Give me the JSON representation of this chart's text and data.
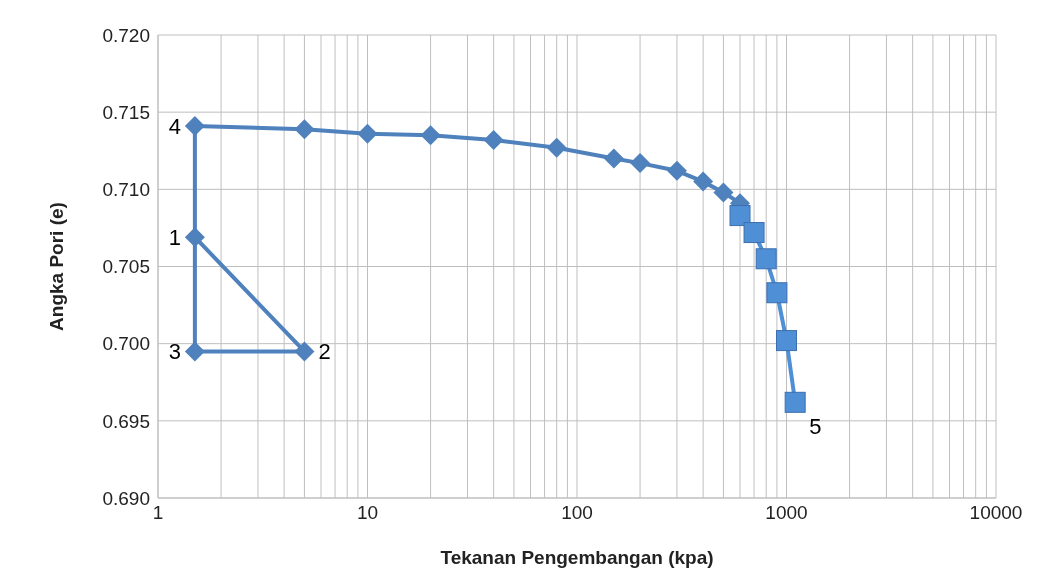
{
  "chart_data": {
    "type": "line",
    "xlabel": "Tekanan Pengembangan (kpa)",
    "ylabel": "Angka Pori (e)",
    "log": "x",
    "grid": true,
    "legend": false,
    "line_style": "solid",
    "xlim": [
      1,
      10000
    ],
    "xticks": [
      1,
      10,
      100,
      1000,
      10000
    ],
    "ylim": [
      0.69,
      0.72
    ],
    "yticks": [
      {
        "value": 0.69,
        "label": "0.690"
      },
      {
        "value": 0.695,
        "label": "0.695"
      },
      {
        "value": 0.7,
        "label": "0.700"
      },
      {
        "value": 0.705,
        "label": "0.705"
      },
      {
        "value": 0.71,
        "label": "0.710"
      },
      {
        "value": 0.715,
        "label": "0.715"
      },
      {
        "value": 0.72,
        "label": "0.720"
      }
    ],
    "series": [
      {
        "color": "#4f81bd",
        "marker": "diamond",
        "x": [
          1.5,
          5,
          1.5,
          1.5,
          5,
          10,
          20,
          40,
          80,
          150,
          200,
          300,
          400,
          500,
          600
        ],
        "values": [
          0.7069,
          0.6995,
          0.6995,
          0.7141,
          0.7139,
          0.7136,
          0.7135,
          0.7132,
          0.7127,
          0.712,
          0.7117,
          0.7112,
          0.7105,
          0.7098,
          0.7091
        ]
      },
      {
        "color": "#4f8fd6",
        "marker": "square",
        "x": [
          600,
          700,
          800,
          900,
          1000,
          1100
        ],
        "values": [
          0.7083,
          0.7072,
          0.7055,
          0.7033,
          0.7002,
          0.6962
        ]
      }
    ],
    "annotations": [
      {
        "text": "1",
        "x": 1.5,
        "y": 0.7069
      },
      {
        "text": "2",
        "x": 5,
        "y": 0.6995
      },
      {
        "text": "3",
        "x": 1.5,
        "y": 0.6995
      },
      {
        "text": "4",
        "x": 1.5,
        "y": 0.7141
      },
      {
        "text": "5",
        "x": 1100,
        "y": 0.6962
      }
    ]
  }
}
